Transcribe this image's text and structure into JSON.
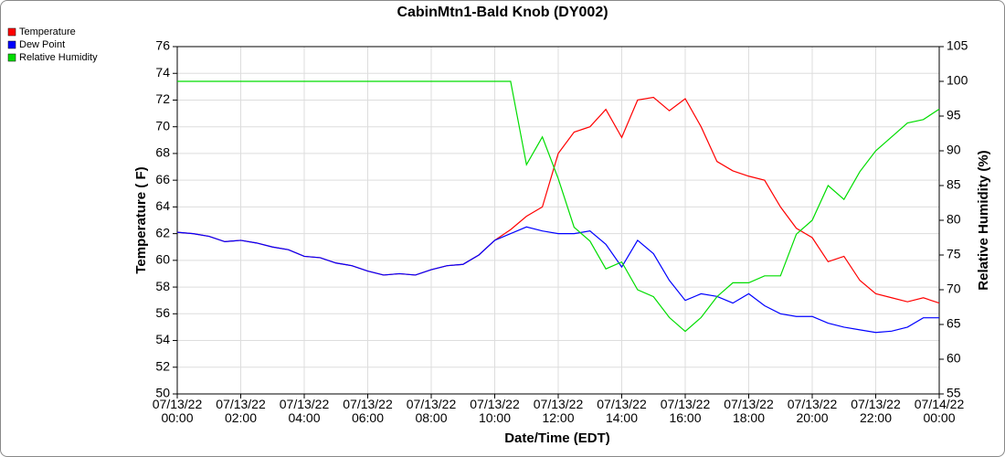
{
  "chart_data": {
    "type": "line",
    "title": "CabinMtn1-Bald Knob (DY002)",
    "x_label": "Date/Time (EDT)",
    "y_label": "Temperature ( F)",
    "y2_label": "Relative Humidity (%)",
    "x": [
      0,
      0.5,
      1,
      1.5,
      2,
      2.5,
      3,
      3.5,
      4,
      4.5,
      5,
      5.5,
      6,
      6.5,
      7,
      7.5,
      8,
      8.5,
      9,
      9.5,
      10,
      10.5,
      11,
      11.5,
      12,
      12.5,
      13,
      13.5,
      14,
      14.5,
      15,
      15.5,
      16,
      16.5,
      17,
      17.5,
      18,
      18.5,
      19,
      19.5,
      20,
      20.5,
      21,
      21.5,
      22,
      22.5,
      23,
      23.5,
      24
    ],
    "series": [
      {
        "name": "Temperature",
        "color": "#ff0000",
        "values": [
          62.1,
          62.0,
          61.8,
          61.4,
          61.5,
          61.3,
          61.0,
          60.8,
          60.3,
          60.2,
          59.8,
          59.6,
          59.2,
          58.9,
          59.0,
          58.9,
          59.3,
          59.6,
          59.7,
          60.4,
          61.5,
          62.3,
          63.3,
          64.0,
          68.0,
          69.6,
          70.0,
          71.3,
          69.2,
          72.0,
          72.2,
          71.2,
          72.1,
          70.0,
          67.4,
          66.7,
          66.3,
          66.0,
          64.0,
          62.4,
          61.7,
          59.9,
          60.3,
          58.5,
          57.5,
          57.2,
          56.9,
          57.2,
          56.8
        ]
      },
      {
        "name": "Dew Point",
        "color": "#0000ff",
        "values": [
          62.1,
          62.0,
          61.8,
          61.4,
          61.5,
          61.3,
          61.0,
          60.8,
          60.3,
          60.2,
          59.8,
          59.6,
          59.2,
          58.9,
          59.0,
          58.9,
          59.3,
          59.6,
          59.7,
          60.4,
          61.5,
          62.0,
          62.5,
          62.2,
          62.0,
          62.0,
          62.2,
          61.2,
          59.5,
          61.5,
          60.5,
          58.5,
          57.0,
          57.5,
          57.3,
          56.8,
          57.5,
          56.6,
          56.0,
          55.8,
          55.8,
          55.3,
          55.0,
          54.8,
          54.6,
          54.7,
          55.0,
          55.7,
          55.7
        ]
      },
      {
        "name": "Relative Humidity",
        "color": "#00dd00",
        "axis": "y2",
        "values": [
          100,
          100,
          100,
          100,
          100,
          100,
          100,
          100,
          100,
          100,
          100,
          100,
          100,
          100,
          100,
          100,
          100,
          100,
          100,
          100,
          100,
          100,
          88,
          92,
          86,
          79,
          77,
          73,
          74,
          70,
          69,
          66,
          64,
          66,
          69,
          71,
          71,
          72,
          72,
          78,
          80,
          85,
          83,
          87,
          90,
          92,
          94,
          94.5,
          96
        ]
      }
    ],
    "xlim": [
      0,
      24
    ],
    "xticks": [
      {
        "value": 0,
        "label": "07/13/22\n00:00"
      },
      {
        "value": 2,
        "label": "07/13/22\n02:00"
      },
      {
        "value": 4,
        "label": "07/13/22\n04:00"
      },
      {
        "value": 6,
        "label": "07/13/22\n06:00"
      },
      {
        "value": 8,
        "label": "07/13/22\n08:00"
      },
      {
        "value": 10,
        "label": "07/13/22\n10:00"
      },
      {
        "value": 12,
        "label": "07/13/22\n12:00"
      },
      {
        "value": 14,
        "label": "07/13/22\n14:00"
      },
      {
        "value": 16,
        "label": "07/13/22\n16:00"
      },
      {
        "value": 18,
        "label": "07/13/22\n18:00"
      },
      {
        "value": 20,
        "label": "07/13/22\n20:00"
      },
      {
        "value": 22,
        "label": "07/13/22\n22:00"
      },
      {
        "value": 24,
        "label": "07/14/22\n00:00"
      }
    ],
    "ylim": [
      50,
      76
    ],
    "yticks": [
      50,
      52,
      54,
      56,
      58,
      60,
      62,
      64,
      66,
      68,
      70,
      72,
      74,
      76
    ],
    "y2lim": [
      55,
      105
    ],
    "y2ticks": [
      55,
      60,
      65,
      70,
      75,
      80,
      85,
      90,
      95,
      100,
      105
    ],
    "grid": true,
    "legend": "top-left"
  }
}
